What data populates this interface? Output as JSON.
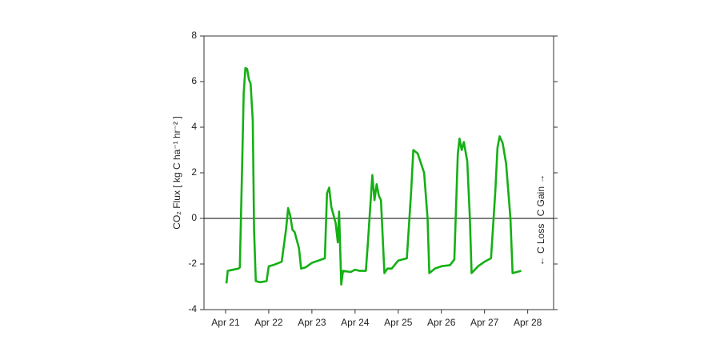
{
  "chart_data": {
    "type": "line",
    "ylabel": "CO₂ Flux [ kg C ha⁻¹ hr⁻² ]",
    "annotations": [
      "C Gain →",
      "← C Loss"
    ],
    "x": [
      0.02,
      0.05,
      0.3,
      0.33,
      0.38,
      0.42,
      0.46,
      0.5,
      0.54,
      0.58,
      0.63,
      0.66,
      0.7,
      0.8,
      0.95,
      1.0,
      1.1,
      1.3,
      1.4,
      1.45,
      1.5,
      1.55,
      1.6,
      1.7,
      1.75,
      1.85,
      2.0,
      2.15,
      2.3,
      2.35,
      2.4,
      2.45,
      2.55,
      2.6,
      2.63,
      2.68,
      2.72,
      2.9,
      3.0,
      3.1,
      3.25,
      3.3,
      3.4,
      3.45,
      3.5,
      3.55,
      3.6,
      3.68,
      3.75,
      3.85,
      4.0,
      4.2,
      4.3,
      4.35,
      4.45,
      4.6,
      4.68,
      4.72,
      4.85,
      5.0,
      5.2,
      5.3,
      5.38,
      5.42,
      5.47,
      5.52,
      5.6,
      5.66,
      5.7,
      5.85,
      6.0,
      6.15,
      6.25,
      6.3,
      6.35,
      6.42,
      6.5,
      6.6,
      6.65,
      6.75,
      6.85
    ],
    "series": [
      {
        "name": "CO2 Flux",
        "color": "#14b014",
        "values": [
          -2.85,
          -2.3,
          -2.2,
          -2.15,
          2,
          5.5,
          6.6,
          6.55,
          6.1,
          5.9,
          4.3,
          -0.5,
          -2.75,
          -2.8,
          -2.75,
          -2.1,
          -2.05,
          -1.9,
          -0.5,
          0.45,
          0.1,
          -0.5,
          -0.6,
          -1.3,
          -2.2,
          -2.15,
          -1.95,
          -1.85,
          -1.75,
          1.1,
          1.35,
          0.5,
          -0.2,
          -1.05,
          0.3,
          -2.9,
          -2.3,
          -2.35,
          -2.25,
          -2.3,
          -2.3,
          -1.0,
          1.9,
          0.8,
          1.5,
          1.0,
          0.8,
          -2.4,
          -2.2,
          -2.2,
          -1.85,
          -1.75,
          1.2,
          3.0,
          2.85,
          2.0,
          0,
          -2.4,
          -2.2,
          -2.1,
          -2.05,
          -1.8,
          2.8,
          3.5,
          3.0,
          3.35,
          2.5,
          0,
          -2.4,
          -2.1,
          -1.9,
          -1.75,
          1.2,
          3.1,
          3.6,
          3.3,
          2.4,
          0,
          -2.4,
          -2.35,
          -2.3
        ]
      }
    ],
    "xlim": [
      -0.5,
      7.6
    ],
    "xticks": [
      {
        "value": 0,
        "label": "Apr 21"
      },
      {
        "value": 1,
        "label": "Apr 22"
      },
      {
        "value": 2,
        "label": "Apr 23"
      },
      {
        "value": 3,
        "label": "Apr 24"
      },
      {
        "value": 4,
        "label": "Apr 25"
      },
      {
        "value": 5,
        "label": "Apr 26"
      },
      {
        "value": 6,
        "label": "Apr 27"
      },
      {
        "value": 7,
        "label": "Apr 28"
      }
    ],
    "ylim": [
      -4,
      8
    ],
    "yticks": [
      -4,
      -2,
      0,
      2,
      4,
      6,
      8
    ],
    "zero_line": true
  }
}
